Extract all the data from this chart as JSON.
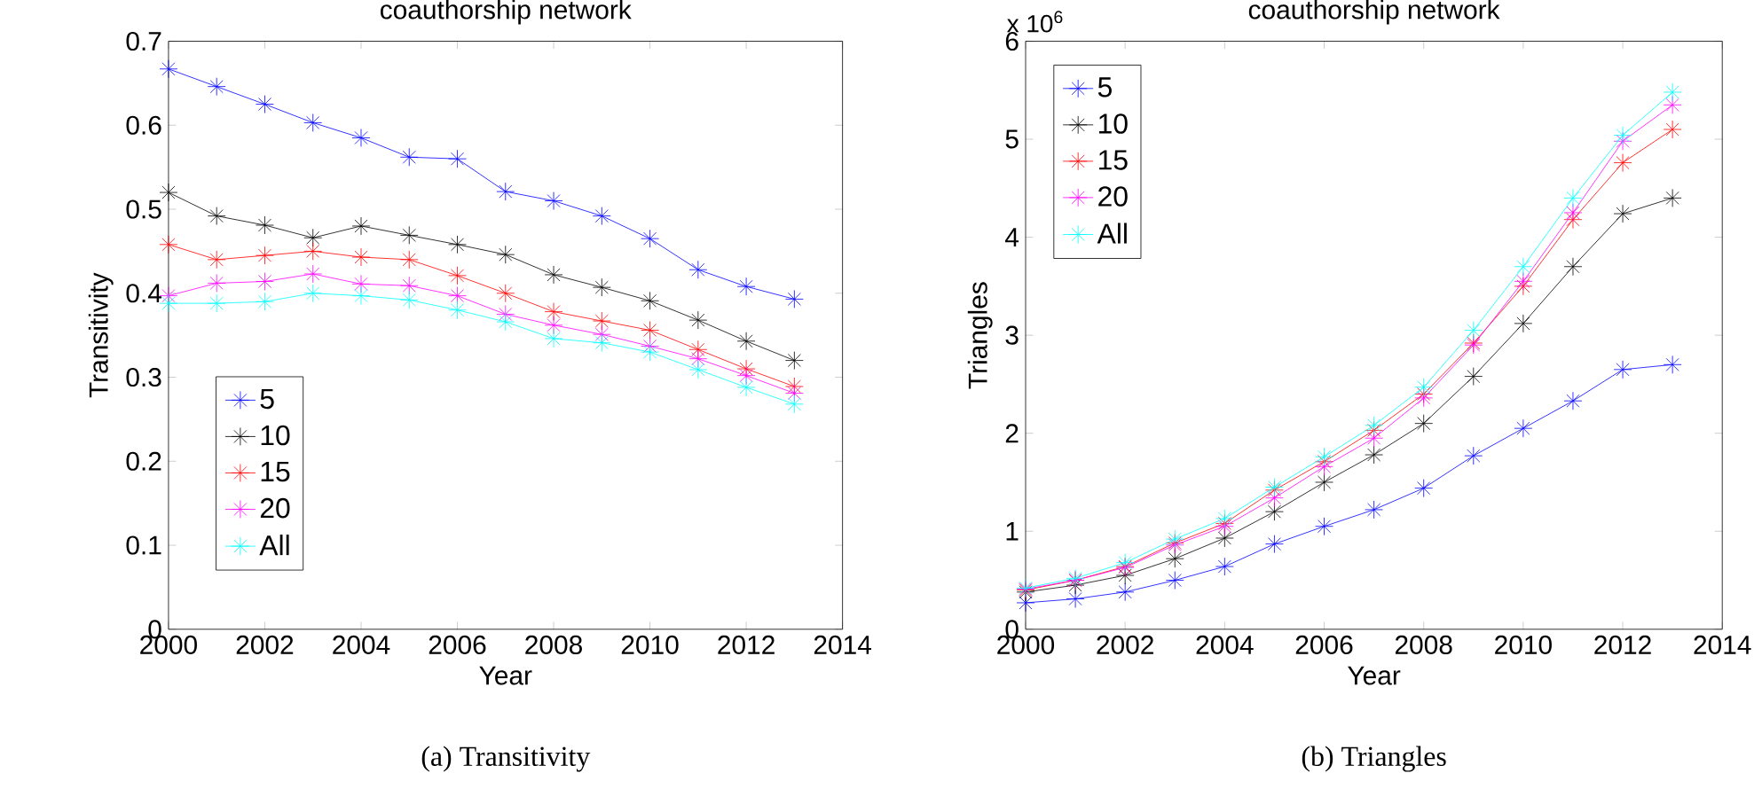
{
  "chart_data": [
    {
      "type": "line",
      "title": "coauthorship network",
      "xlabel": "Year",
      "ylabel": "Transitivity",
      "annotations": [
        "(a)  Transitivity"
      ],
      "x": [
        2000,
        2001,
        2002,
        2003,
        2004,
        2005,
        2006,
        2007,
        2008,
        2009,
        2010,
        2011,
        2012,
        2013
      ],
      "xlim": [
        2000,
        2014
      ],
      "xticks": [
        2000,
        2002,
        2004,
        2006,
        2008,
        2010,
        2012,
        2014
      ],
      "ylim": [
        0,
        0.7
      ],
      "yticks": [
        0,
        0.1,
        0.2,
        0.3,
        0.4,
        0.5,
        0.6,
        0.7
      ],
      "marker": "cross",
      "legend": "left",
      "series": [
        {
          "name": "5",
          "color": "#0000ff",
          "values": [
            0.667,
            0.646,
            0.625,
            0.603,
            0.585,
            0.562,
            0.56,
            0.521,
            0.51,
            0.492,
            0.465,
            0.428,
            0.408,
            0.393
          ]
        },
        {
          "name": "10",
          "color": "#000000",
          "values": [
            0.52,
            0.492,
            0.481,
            0.466,
            0.48,
            0.469,
            0.458,
            0.446,
            0.422,
            0.407,
            0.391,
            0.368,
            0.343,
            0.32
          ]
        },
        {
          "name": "15",
          "color": "#ff0000",
          "values": [
            0.458,
            0.44,
            0.445,
            0.45,
            0.443,
            0.44,
            0.421,
            0.4,
            0.378,
            0.367,
            0.356,
            0.333,
            0.31,
            0.289
          ]
        },
        {
          "name": "20",
          "color": "#ff00ff",
          "values": [
            0.397,
            0.412,
            0.414,
            0.423,
            0.411,
            0.409,
            0.397,
            0.375,
            0.362,
            0.351,
            0.337,
            0.322,
            0.302,
            0.281
          ]
        },
        {
          "name": "All",
          "color": "#00ffff",
          "values": [
            0.388,
            0.388,
            0.39,
            0.4,
            0.397,
            0.392,
            0.38,
            0.366,
            0.346,
            0.341,
            0.33,
            0.309,
            0.288,
            0.268
          ]
        }
      ]
    },
    {
      "type": "line",
      "title": "coauthorship network",
      "xlabel": "Year",
      "ylabel": "Triangles",
      "annotations": [
        "x 10$^{6}$",
        "(b)  Triangles"
      ],
      "x": [
        2000,
        2001,
        2002,
        2003,
        2004,
        2005,
        2006,
        2007,
        2008,
        2009,
        2010,
        2011,
        2012,
        2013
      ],
      "xlim": [
        2000,
        2014
      ],
      "xticks": [
        2000,
        2002,
        2004,
        2006,
        2008,
        2010,
        2012,
        2014
      ],
      "ylim": [
        0,
        6
      ],
      "yticks": [
        0,
        1,
        2,
        3,
        4,
        5,
        6
      ],
      "marker": "cross",
      "legend": "top left",
      "series": [
        {
          "name": "5",
          "color": "#0000ff",
          "values": [
            0.27,
            0.31,
            0.38,
            0.5,
            0.64,
            0.87,
            1.05,
            1.22,
            1.44,
            1.77,
            2.05,
            2.33,
            2.65,
            2.7
          ]
        },
        {
          "name": "10",
          "color": "#000000",
          "values": [
            0.38,
            0.45,
            0.55,
            0.72,
            0.93,
            1.2,
            1.5,
            1.78,
            2.1,
            2.58,
            3.12,
            3.7,
            4.24,
            4.4
          ]
        },
        {
          "name": "15",
          "color": "#ff0000",
          "values": [
            0.4,
            0.5,
            0.64,
            0.88,
            1.08,
            1.42,
            1.71,
            2.03,
            2.4,
            2.92,
            3.5,
            4.18,
            4.76,
            5.1
          ]
        },
        {
          "name": "20",
          "color": "#ff00ff",
          "values": [
            0.41,
            0.5,
            0.63,
            0.86,
            1.05,
            1.34,
            1.66,
            1.95,
            2.36,
            2.9,
            3.55,
            4.25,
            4.98,
            5.35
          ]
        },
        {
          "name": "All",
          "color": "#00ffff",
          "values": [
            0.42,
            0.52,
            0.68,
            0.92,
            1.13,
            1.45,
            1.76,
            2.08,
            2.47,
            3.05,
            3.7,
            4.4,
            5.04,
            5.48
          ]
        }
      ]
    }
  ]
}
